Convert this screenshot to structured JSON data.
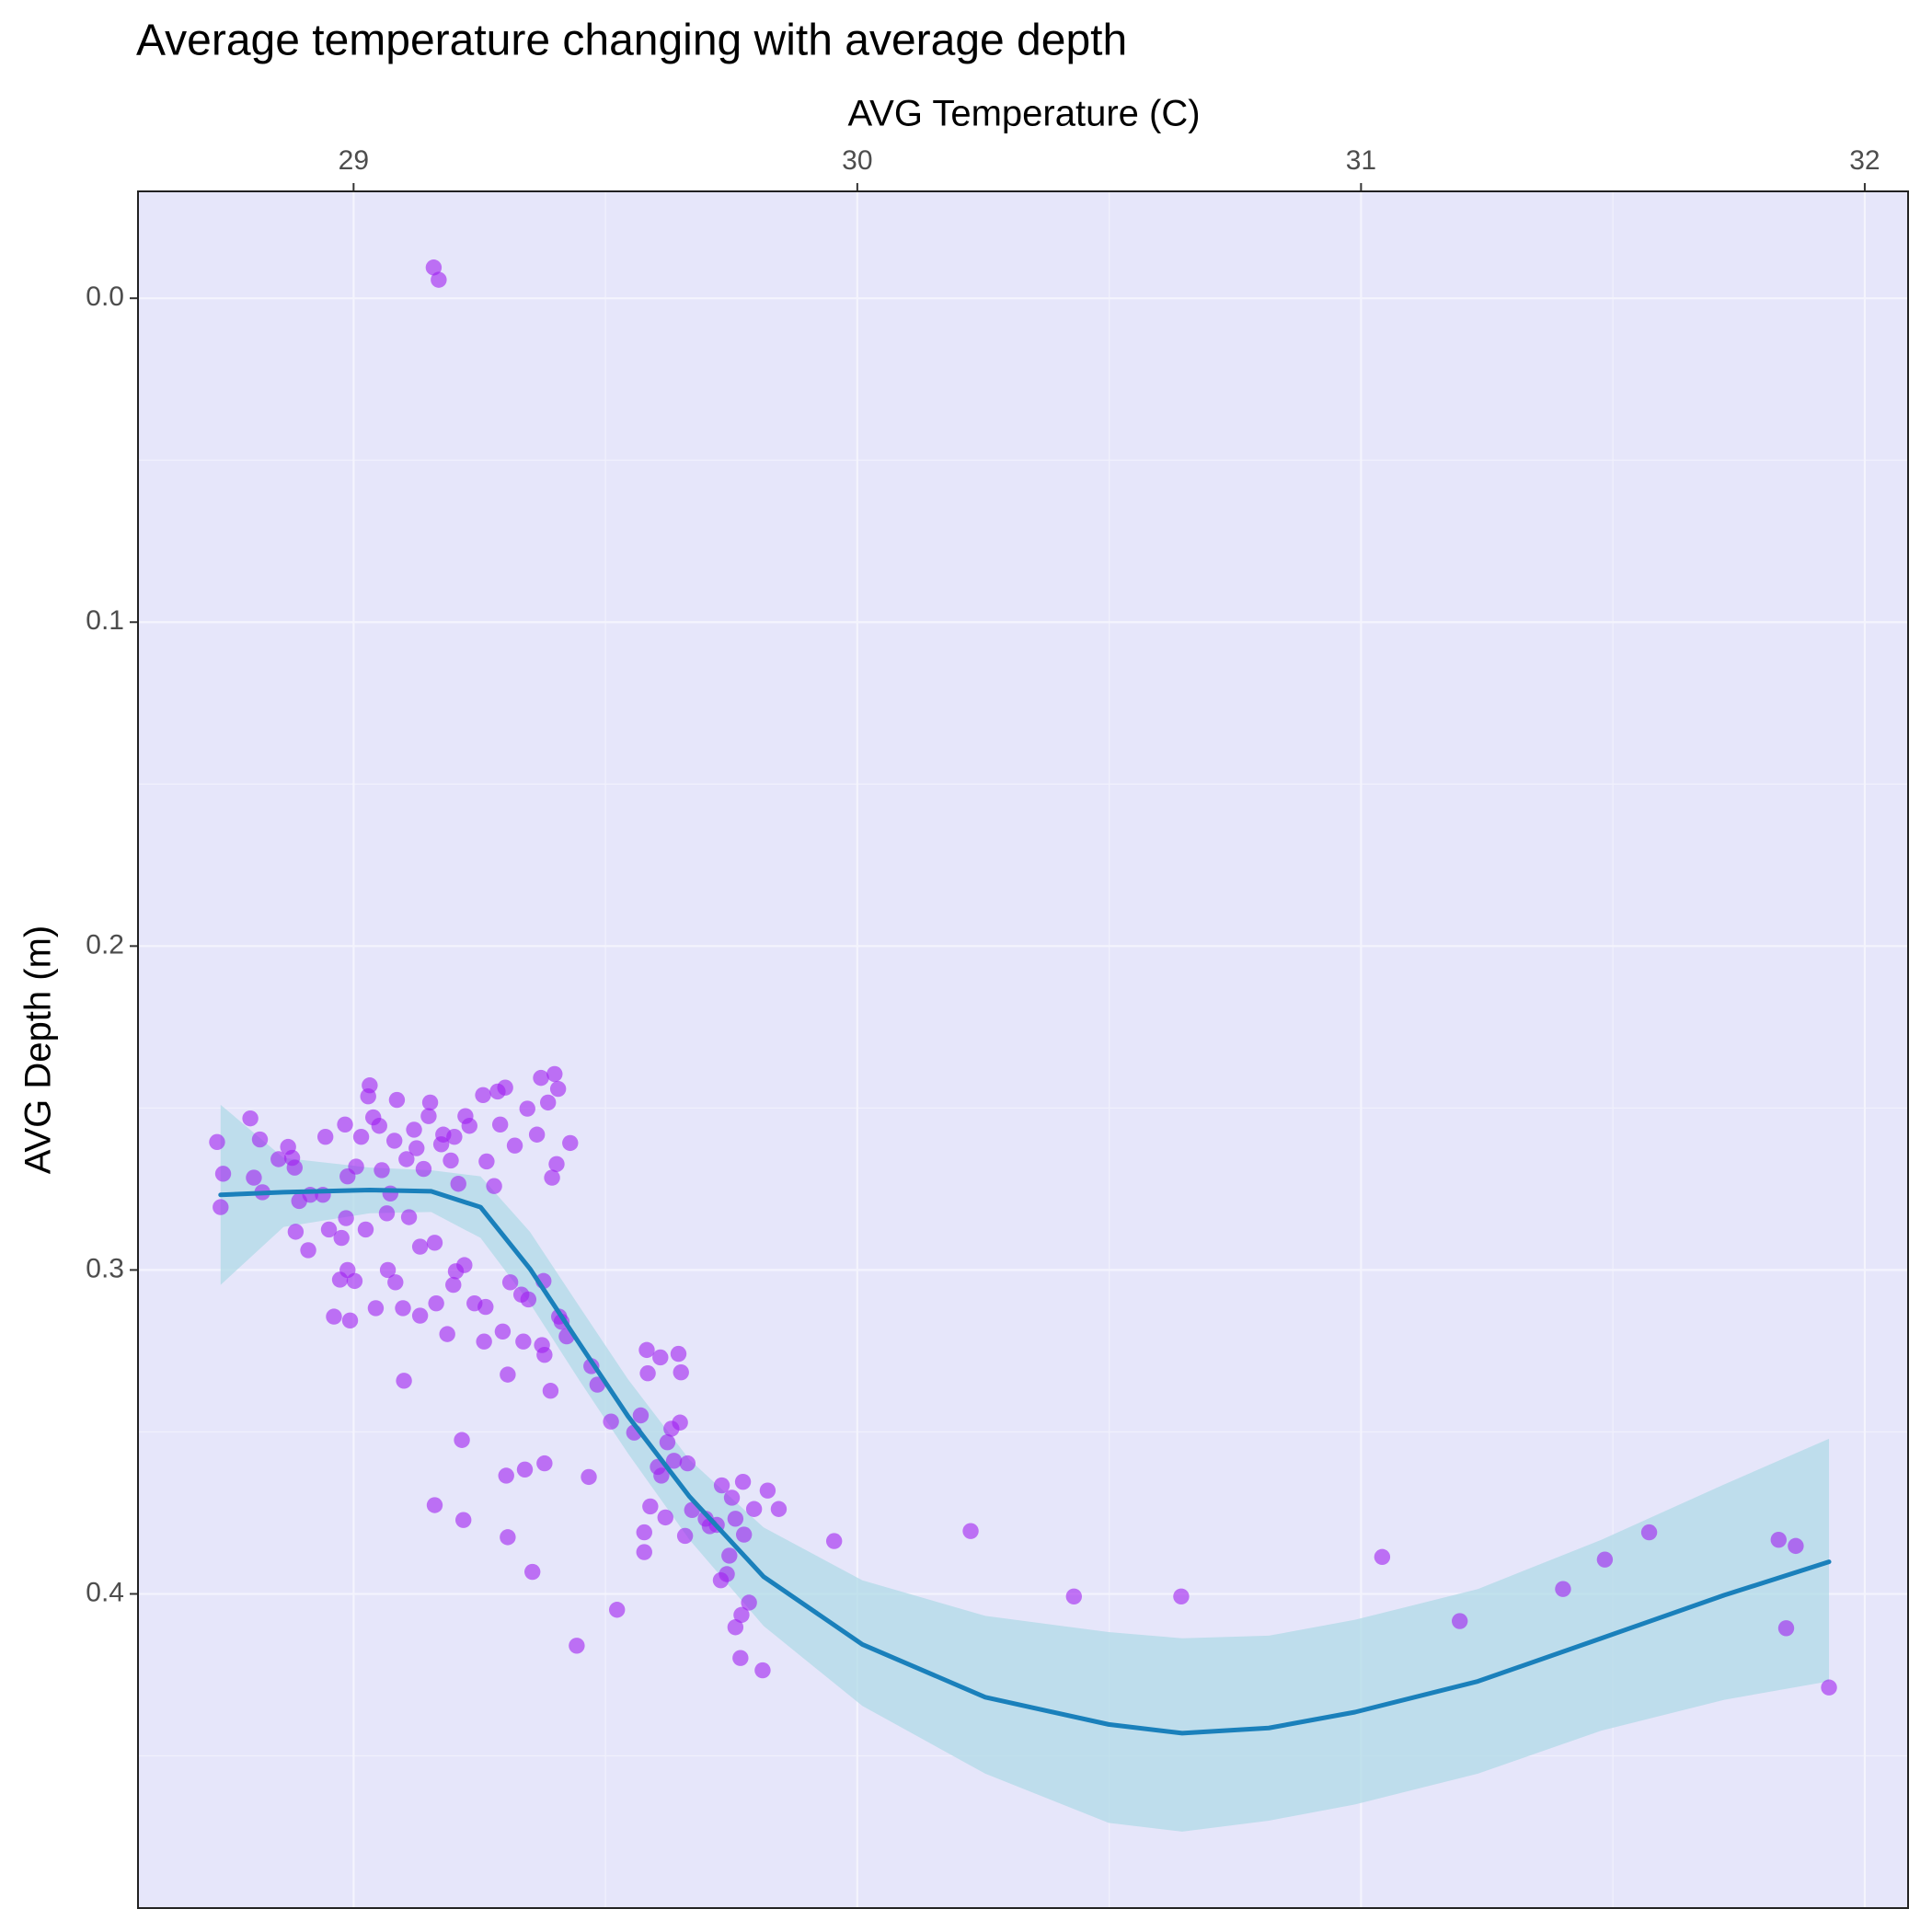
{
  "chart_data": {
    "type": "scatter",
    "title": "Average temperature changing with average depth",
    "x_label": "AVG Temperature (C)",
    "y_label": "AVG Depth (m)",
    "x_axis_position": "top",
    "y_reverse": true,
    "grid": true,
    "background": "#e6e6fa",
    "xlim": [
      28.572,
      32.086
    ],
    "ylim": [
      -0.033,
      0.497
    ],
    "xticks": [
      29,
      30,
      31,
      32
    ],
    "yticks": [
      {
        "value": 0,
        "label": "0.0"
      },
      0.1,
      0.2,
      0.3,
      0.4
    ],
    "x_minor_grid": [
      29.5,
      30.5,
      31.5
    ],
    "y_minor_grid": [
      0.05,
      0.15,
      0.25,
      0.35,
      0.45
    ],
    "series": [
      {
        "color": "#a020f0",
        "opacity": 0.6,
        "x": [
          29.159,
          29.169,
          28.729,
          28.741,
          28.736,
          28.795,
          28.802,
          28.814,
          28.819,
          28.851,
          28.87,
          28.878,
          28.883,
          28.885,
          28.892,
          28.91,
          28.914,
          28.939,
          28.944,
          28.951,
          28.961,
          28.973,
          28.976,
          28.983,
          28.985,
          28.988,
          28.988,
          28.993,
          29.002,
          29.005,
          29.015,
          29.024,
          29.029,
          29.032,
          29.039,
          29.044,
          29.051,
          29.056,
          29.066,
          29.068,
          29.073,
          29.081,
          29.083,
          29.086,
          29.098,
          29.1,
          29.105,
          29.11,
          29.12,
          29.125,
          29.132,
          29.132,
          29.139,
          29.149,
          29.152,
          29.161,
          29.161,
          29.164,
          29.174,
          29.178,
          29.186,
          29.193,
          29.198,
          29.2,
          29.203,
          29.208,
          29.215,
          29.218,
          29.22,
          29.222,
          29.23,
          29.24,
          29.257,
          29.259,
          29.262,
          29.264,
          29.279,
          29.286,
          29.291,
          29.296,
          29.301,
          29.303,
          29.306,
          29.306,
          29.311,
          29.32,
          29.333,
          29.337,
          29.34,
          29.345,
          29.347,
          29.355,
          29.364,
          29.372,
          29.374,
          29.377,
          29.379,
          29.379,
          29.386,
          29.391,
          29.394,
          29.399,
          29.403,
          29.406,
          29.408,
          29.413,
          29.423,
          29.43,
          29.443,
          29.467,
          29.472,
          29.484,
          29.511,
          29.523,
          29.557,
          29.57,
          29.577,
          29.577,
          29.582,
          29.584,
          29.589,
          29.604,
          29.609,
          29.611,
          29.619,
          29.623,
          29.631,
          29.636,
          29.645,
          29.648,
          29.65,
          29.658,
          29.663,
          29.672,
          29.699,
          29.707,
          29.721,
          29.729,
          29.731,
          29.741,
          29.746,
          29.751,
          29.758,
          29.758,
          29.768,
          29.77,
          29.773,
          29.775,
          29.785,
          29.795,
          29.812,
          29.822,
          29.844,
          29.954,
          30.225,
          30.43,
          30.643,
          31.042,
          31.196,
          31.401,
          31.484,
          31.572,
          31.829,
          31.844,
          31.863,
          31.929
        ],
        "values": [
          -0.0095,
          -0.0057,
          0.2605,
          0.2703,
          0.2806,
          0.2532,
          0.2715,
          0.2597,
          0.276,
          0.2658,
          0.262,
          0.2654,
          0.2684,
          0.2882,
          0.2787,
          0.2939,
          0.2768,
          0.2768,
          0.2589,
          0.2875,
          0.3144,
          0.303,
          0.2901,
          0.2551,
          0.284,
          0.3,
          0.2711,
          0.3156,
          0.3034,
          0.2681,
          0.2589,
          0.2875,
          0.2464,
          0.243,
          0.2529,
          0.3118,
          0.2555,
          0.2692,
          0.2825,
          0.3,
          0.2764,
          0.2601,
          0.3038,
          0.2475,
          0.3118,
          0.3342,
          0.2658,
          0.2837,
          0.2567,
          0.2624,
          0.2928,
          0.3141,
          0.2688,
          0.2525,
          0.2483,
          0.2916,
          0.3726,
          0.3103,
          0.2612,
          0.2582,
          0.3198,
          0.2662,
          0.3046,
          0.2589,
          0.3004,
          0.2734,
          0.3525,
          0.3772,
          0.2985,
          0.2525,
          0.2555,
          0.3103,
          0.246,
          0.3221,
          0.3114,
          0.2665,
          0.2741,
          0.2449,
          0.2551,
          0.319,
          0.2437,
          0.3635,
          0.3825,
          0.3323,
          0.3038,
          0.2616,
          0.3076,
          0.3221,
          0.3616,
          0.2502,
          0.3091,
          0.3932,
          0.2582,
          0.2407,
          0.3232,
          0.3034,
          0.3597,
          0.3262,
          0.2483,
          0.3373,
          0.2715,
          0.2395,
          0.2673,
          0.2441,
          0.3144,
          0.316,
          0.3205,
          0.2608,
          0.416,
          0.3639,
          0.3297,
          0.3354,
          0.3468,
          0.4049,
          0.3502,
          0.3449,
          0.381,
          0.3871,
          0.3247,
          0.3319,
          0.373,
          0.3608,
          0.327,
          0.3635,
          0.3764,
          0.3532,
          0.349,
          0.3589,
          0.3259,
          0.3471,
          0.3316,
          0.3821,
          0.3597,
          0.3741,
          0.3768,
          0.3791,
          0.3787,
          0.3958,
          0.3665,
          0.3939,
          0.3882,
          0.3703,
          0.3768,
          0.4103,
          0.4198,
          0.4065,
          0.3654,
          0.3817,
          0.4027,
          0.3738,
          0.4236,
          0.3681,
          0.3738,
          0.3837,
          0.3806,
          0.4008,
          0.4008,
          0.3886,
          0.4084,
          0.3985,
          0.3894,
          0.381,
          0.3833,
          0.4106,
          0.3852,
          0.4289
        ]
      }
    ],
    "smooth": {
      "color": "#1a80bb",
      "band_color": "#add8e6",
      "x": [
        28.736,
        28.861,
        29.032,
        29.154,
        29.252,
        29.35,
        29.447,
        29.545,
        29.667,
        29.814,
        30.01,
        30.254,
        30.499,
        30.645,
        30.817,
        30.988,
        31.232,
        31.477,
        31.721,
        31.929
      ],
      "y": [
        0.2768,
        0.276,
        0.2753,
        0.2757,
        0.2806,
        0.2996,
        0.3224,
        0.3452,
        0.37,
        0.3947,
        0.4156,
        0.4319,
        0.4403,
        0.443,
        0.4414,
        0.4365,
        0.427,
        0.4137,
        0.4004,
        0.3901
      ],
      "ymin": [
        0.249,
        0.2654,
        0.2684,
        0.2692,
        0.2711,
        0.2882,
        0.311,
        0.3338,
        0.3586,
        0.3795,
        0.3958,
        0.4068,
        0.4118,
        0.4137,
        0.4129,
        0.408,
        0.3985,
        0.3833,
        0.3662,
        0.3521
      ],
      "ymax": [
        0.3046,
        0.2867,
        0.2825,
        0.2821,
        0.2901,
        0.3103,
        0.3338,
        0.3567,
        0.3833,
        0.4099,
        0.4346,
        0.4555,
        0.4707,
        0.4734,
        0.47,
        0.465,
        0.4555,
        0.4422,
        0.4327,
        0.427
      ]
    }
  }
}
